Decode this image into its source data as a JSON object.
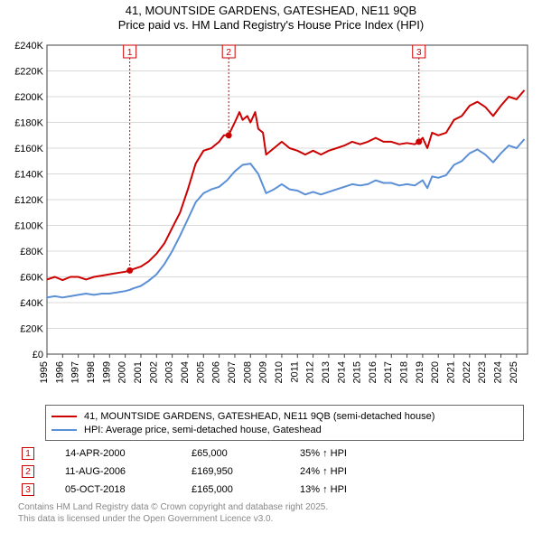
{
  "title_line1": "41, MOUNTSIDE GARDENS, GATESHEAD, NE11 9QB",
  "title_line2": "Price paid vs. HM Land Registry's House Price Index (HPI)",
  "title_fontsize": 13,
  "chart": {
    "type": "line",
    "background_color": "#ffffff",
    "grid_color": "#d9d9d9",
    "axis_color": "#404040",
    "tick_fontsize": 11,
    "xlim": [
      1995,
      2025.7
    ],
    "ylim": [
      0,
      240000
    ],
    "ytick_step": 20000,
    "x_ticks": [
      1995,
      1996,
      1997,
      1998,
      1999,
      2000,
      2001,
      2002,
      2003,
      2004,
      2005,
      2006,
      2007,
      2008,
      2009,
      2010,
      2011,
      2012,
      2013,
      2014,
      2015,
      2016,
      2017,
      2018,
      2019,
      2020,
      2021,
      2022,
      2023,
      2024,
      2025
    ],
    "y_tick_labels": [
      "£0",
      "£20K",
      "£40K",
      "£60K",
      "£80K",
      "£100K",
      "£120K",
      "£140K",
      "£160K",
      "£180K",
      "£200K",
      "£220K",
      "£240K"
    ],
    "series": [
      {
        "name": "41, MOUNTSIDE GARDENS, GATESHEAD, NE11 9QB (semi-detached house)",
        "color": "#cc0000",
        "line_width": 2,
        "points": [
          [
            1995,
            58000
          ],
          [
            1995.5,
            60000
          ],
          [
            1996,
            57500
          ],
          [
            1996.5,
            60000
          ],
          [
            1997,
            60000
          ],
          [
            1997.5,
            58000
          ],
          [
            1998,
            60000
          ],
          [
            1998.5,
            61000
          ],
          [
            1999,
            62000
          ],
          [
            1999.5,
            63000
          ],
          [
            2000,
            64000
          ],
          [
            2000.3,
            65000
          ],
          [
            2000.5,
            66000
          ],
          [
            2001,
            68000
          ],
          [
            2001.5,
            72000
          ],
          [
            2002,
            78000
          ],
          [
            2002.5,
            86000
          ],
          [
            2003,
            98000
          ],
          [
            2003.5,
            110000
          ],
          [
            2004,
            128000
          ],
          [
            2004.5,
            148000
          ],
          [
            2005,
            158000
          ],
          [
            2005.5,
            160000
          ],
          [
            2006,
            165000
          ],
          [
            2006.3,
            170000
          ],
          [
            2006.6,
            169950
          ],
          [
            2007,
            180000
          ],
          [
            2007.3,
            188000
          ],
          [
            2007.5,
            182000
          ],
          [
            2007.8,
            185000
          ],
          [
            2008,
            180000
          ],
          [
            2008.3,
            188000
          ],
          [
            2008.5,
            175000
          ],
          [
            2008.8,
            172000
          ],
          [
            2009,
            155000
          ],
          [
            2009.5,
            160000
          ],
          [
            2010,
            165000
          ],
          [
            2010.5,
            160000
          ],
          [
            2011,
            158000
          ],
          [
            2011.5,
            155000
          ],
          [
            2012,
            158000
          ],
          [
            2012.5,
            155000
          ],
          [
            2013,
            158000
          ],
          [
            2013.5,
            160000
          ],
          [
            2014,
            162000
          ],
          [
            2014.5,
            165000
          ],
          [
            2015,
            163000
          ],
          [
            2015.5,
            165000
          ],
          [
            2016,
            168000
          ],
          [
            2016.5,
            165000
          ],
          [
            2017,
            165000
          ],
          [
            2017.5,
            163000
          ],
          [
            2018,
            164000
          ],
          [
            2018.5,
            163000
          ],
          [
            2018.76,
            165000
          ],
          [
            2019,
            168000
          ],
          [
            2019.3,
            160000
          ],
          [
            2019.6,
            172000
          ],
          [
            2020,
            170000
          ],
          [
            2020.5,
            172000
          ],
          [
            2021,
            182000
          ],
          [
            2021.5,
            185000
          ],
          [
            2022,
            193000
          ],
          [
            2022.5,
            196000
          ],
          [
            2023,
            192000
          ],
          [
            2023.5,
            185000
          ],
          [
            2024,
            193000
          ],
          [
            2024.5,
            200000
          ],
          [
            2025,
            198000
          ],
          [
            2025.5,
            205000
          ]
        ]
      },
      {
        "name": "HPI: Average price, semi-detached house, Gateshead",
        "color": "#5b8fd6",
        "line_width": 2,
        "points": [
          [
            1995,
            44000
          ],
          [
            1995.5,
            45000
          ],
          [
            1996,
            44000
          ],
          [
            1996.5,
            45000
          ],
          [
            1997,
            46000
          ],
          [
            1997.5,
            47000
          ],
          [
            1998,
            46000
          ],
          [
            1998.5,
            47000
          ],
          [
            1999,
            47000
          ],
          [
            1999.5,
            48000
          ],
          [
            2000,
            49000
          ],
          [
            2000.3,
            50000
          ],
          [
            2000.5,
            51000
          ],
          [
            2001,
            53000
          ],
          [
            2001.5,
            57000
          ],
          [
            2002,
            62000
          ],
          [
            2002.5,
            70000
          ],
          [
            2003,
            80000
          ],
          [
            2003.5,
            92000
          ],
          [
            2004,
            105000
          ],
          [
            2004.5,
            118000
          ],
          [
            2005,
            125000
          ],
          [
            2005.5,
            128000
          ],
          [
            2006,
            130000
          ],
          [
            2006.5,
            135000
          ],
          [
            2007,
            142000
          ],
          [
            2007.5,
            147000
          ],
          [
            2008,
            148000
          ],
          [
            2008.5,
            140000
          ],
          [
            2009,
            125000
          ],
          [
            2009.5,
            128000
          ],
          [
            2010,
            132000
          ],
          [
            2010.5,
            128000
          ],
          [
            2011,
            127000
          ],
          [
            2011.5,
            124000
          ],
          [
            2012,
            126000
          ],
          [
            2012.5,
            124000
          ],
          [
            2013,
            126000
          ],
          [
            2013.5,
            128000
          ],
          [
            2014,
            130000
          ],
          [
            2014.5,
            132000
          ],
          [
            2015,
            131000
          ],
          [
            2015.5,
            132000
          ],
          [
            2016,
            135000
          ],
          [
            2016.5,
            133000
          ],
          [
            2017,
            133000
          ],
          [
            2017.5,
            131000
          ],
          [
            2018,
            132000
          ],
          [
            2018.5,
            131000
          ],
          [
            2019,
            135000
          ],
          [
            2019.3,
            129000
          ],
          [
            2019.6,
            138000
          ],
          [
            2020,
            137000
          ],
          [
            2020.5,
            139000
          ],
          [
            2021,
            147000
          ],
          [
            2021.5,
            150000
          ],
          [
            2022,
            156000
          ],
          [
            2022.5,
            159000
          ],
          [
            2023,
            155000
          ],
          [
            2023.5,
            149000
          ],
          [
            2024,
            156000
          ],
          [
            2024.5,
            162000
          ],
          [
            2025,
            160000
          ],
          [
            2025.5,
            167000
          ]
        ]
      }
    ],
    "markers": [
      {
        "n": "1",
        "x": 2000.29,
        "y": 65000,
        "box_color": "#cc0000"
      },
      {
        "n": "2",
        "x": 2006.61,
        "y": 169950,
        "box_color": "#cc0000"
      },
      {
        "n": "3",
        "x": 2018.76,
        "y": 165000,
        "box_color": "#cc0000"
      }
    ],
    "marker_fill": "#cc0000",
    "marker_radius": 3.5
  },
  "legend": {
    "items": [
      {
        "color": "#cc0000",
        "label": "41, MOUNTSIDE GARDENS, GATESHEAD, NE11 9QB (semi-detached house)"
      },
      {
        "color": "#5b8fd6",
        "label": "HPI: Average price, semi-detached house, Gateshead"
      }
    ]
  },
  "transactions": [
    {
      "n": "1",
      "date": "14-APR-2000",
      "price": "£65,000",
      "pct": "35% ↑ HPI"
    },
    {
      "n": "2",
      "date": "11-AUG-2006",
      "price": "£169,950",
      "pct": "24% ↑ HPI"
    },
    {
      "n": "3",
      "date": "05-OCT-2018",
      "price": "£165,000",
      "pct": "13% ↑ HPI"
    }
  ],
  "footer_line1": "Contains HM Land Registry data © Crown copyright and database right 2025.",
  "footer_line2": "This data is licensed under the Open Government Licence v3.0.",
  "num_box_border": "#cc0000"
}
